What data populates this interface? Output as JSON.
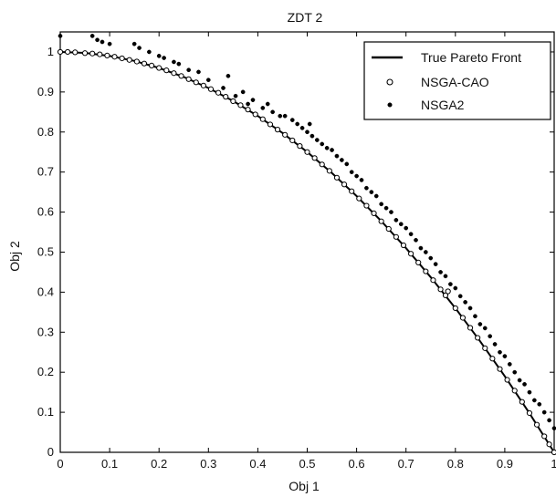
{
  "chart_data": {
    "type": "scatter",
    "title": "ZDT 2",
    "xlabel": "Obj 1",
    "ylabel": "Obj 2",
    "xlim": [
      0,
      1
    ],
    "ylim": [
      0,
      1.05
    ],
    "xticks": [
      0,
      0.1,
      0.2,
      0.3,
      0.4,
      0.5,
      0.6,
      0.7,
      0.8,
      0.9,
      1
    ],
    "yticks": [
      0,
      0.1,
      0.2,
      0.3,
      0.4,
      0.5,
      0.6,
      0.7,
      0.8,
      0.9,
      1
    ],
    "xtick_labels": [
      "0",
      "0.1",
      "0.2",
      "0.3",
      "0.4",
      "0.5",
      "0.6",
      "0.7",
      "0.8",
      "0.9",
      "1"
    ],
    "ytick_labels": [
      "0",
      "0.1",
      "0.2",
      "0.3",
      "0.4",
      "0.5",
      "0.6",
      "0.7",
      "0.8",
      "0.9",
      "1"
    ],
    "grid": false,
    "legend_position": "top-right",
    "colors": {
      "axis": "#000000",
      "line": "#000000",
      "marker": "#000000",
      "background": "#ffffff"
    },
    "series": [
      {
        "name": "True Pareto Front",
        "type": "line",
        "function": "y = 1 - x^2",
        "x": [
          0,
          0.05,
          0.1,
          0.15,
          0.2,
          0.25,
          0.3,
          0.35,
          0.4,
          0.45,
          0.5,
          0.55,
          0.6,
          0.65,
          0.7,
          0.75,
          0.8,
          0.85,
          0.9,
          0.95,
          1
        ],
        "y": [
          1,
          0.9975,
          0.99,
          0.9775,
          0.96,
          0.9375,
          0.91,
          0.8775,
          0.84,
          0.7975,
          0.75,
          0.6975,
          0.64,
          0.5775,
          0.51,
          0.4375,
          0.36,
          0.2775,
          0.19,
          0.0975,
          0
        ]
      },
      {
        "name": "NSGA-CAO",
        "type": "scatter",
        "marker": "open-circle",
        "x": [
          0,
          0.015,
          0.03,
          0.05,
          0.065,
          0.08,
          0.095,
          0.11,
          0.125,
          0.14,
          0.155,
          0.17,
          0.185,
          0.2,
          0.215,
          0.23,
          0.245,
          0.26,
          0.275,
          0.29,
          0.305,
          0.32,
          0.335,
          0.35,
          0.365,
          0.38,
          0.395,
          0.41,
          0.425,
          0.44,
          0.455,
          0.47,
          0.485,
          0.5,
          0.515,
          0.53,
          0.545,
          0.56,
          0.575,
          0.59,
          0.605,
          0.62,
          0.635,
          0.65,
          0.665,
          0.68,
          0.695,
          0.71,
          0.725,
          0.74,
          0.755,
          0.77,
          0.78,
          0.785,
          0.8,
          0.815,
          0.83,
          0.845,
          0.86,
          0.875,
          0.89,
          0.905,
          0.92,
          0.935,
          0.95,
          0.965,
          0.98,
          0.99,
          1
        ],
        "y": [
          1,
          1,
          0.999,
          0.997,
          0.996,
          0.994,
          0.991,
          0.988,
          0.984,
          0.98,
          0.976,
          0.971,
          0.966,
          0.96,
          0.954,
          0.947,
          0.94,
          0.932,
          0.924,
          0.916,
          0.907,
          0.898,
          0.888,
          0.877,
          0.867,
          0.856,
          0.844,
          0.832,
          0.819,
          0.806,
          0.793,
          0.779,
          0.765,
          0.75,
          0.735,
          0.719,
          0.703,
          0.686,
          0.669,
          0.652,
          0.634,
          0.616,
          0.597,
          0.577,
          0.558,
          0.538,
          0.517,
          0.496,
          0.474,
          0.452,
          0.43,
          0.407,
          0.392,
          0.402,
          0.36,
          0.336,
          0.311,
          0.286,
          0.26,
          0.234,
          0.208,
          0.181,
          0.154,
          0.126,
          0.098,
          0.069,
          0.04,
          0.02,
          0
        ]
      },
      {
        "name": "NSGA2",
        "type": "scatter",
        "marker": "filled-dot",
        "x": [
          0.0,
          0.065,
          0.075,
          0.085,
          0.1,
          0.15,
          0.16,
          0.18,
          0.2,
          0.21,
          0.23,
          0.24,
          0.26,
          0.28,
          0.3,
          0.33,
          0.34,
          0.355,
          0.37,
          0.38,
          0.39,
          0.41,
          0.42,
          0.43,
          0.445,
          0.455,
          0.47,
          0.48,
          0.49,
          0.5,
          0.505,
          0.51,
          0.52,
          0.53,
          0.54,
          0.55,
          0.56,
          0.57,
          0.58,
          0.59,
          0.6,
          0.61,
          0.62,
          0.63,
          0.64,
          0.65,
          0.66,
          0.67,
          0.68,
          0.69,
          0.7,
          0.71,
          0.72,
          0.73,
          0.74,
          0.75,
          0.76,
          0.77,
          0.78,
          0.79,
          0.8,
          0.81,
          0.82,
          0.83,
          0.84,
          0.85,
          0.86,
          0.87,
          0.88,
          0.89,
          0.9,
          0.91,
          0.92,
          0.93,
          0.94,
          0.95,
          0.96,
          0.97,
          0.98,
          0.99,
          1.0
        ],
        "y": [
          1.04,
          1.04,
          1.03,
          1.025,
          1.02,
          1.02,
          1.01,
          1.0,
          0.99,
          0.985,
          0.975,
          0.97,
          0.955,
          0.95,
          0.93,
          0.91,
          0.94,
          0.89,
          0.9,
          0.87,
          0.88,
          0.86,
          0.87,
          0.85,
          0.84,
          0.84,
          0.83,
          0.82,
          0.81,
          0.8,
          0.82,
          0.79,
          0.78,
          0.77,
          0.76,
          0.755,
          0.74,
          0.73,
          0.72,
          0.7,
          0.69,
          0.68,
          0.66,
          0.65,
          0.64,
          0.62,
          0.61,
          0.6,
          0.58,
          0.57,
          0.56,
          0.545,
          0.53,
          0.51,
          0.5,
          0.485,
          0.47,
          0.45,
          0.44,
          0.42,
          0.41,
          0.39,
          0.375,
          0.36,
          0.34,
          0.32,
          0.31,
          0.29,
          0.27,
          0.25,
          0.24,
          0.22,
          0.2,
          0.18,
          0.17,
          0.15,
          0.13,
          0.12,
          0.1,
          0.08,
          0.06
        ]
      }
    ]
  }
}
